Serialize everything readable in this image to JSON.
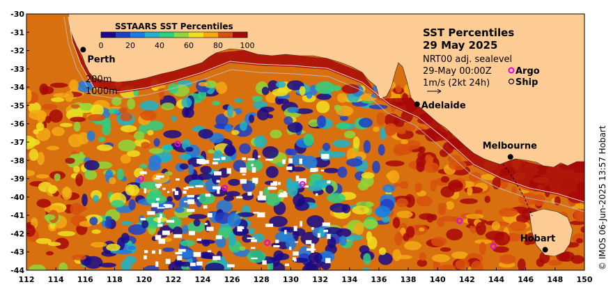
{
  "map": {
    "title_line1": "SST Percentiles",
    "title_line2": "29 May 2025",
    "product": "NRT00 adj. sealevel",
    "time": "29-May 00:00Z",
    "argo_label": "Argo",
    "ship_label": "Ship",
    "velocity_scale": "1m/s (2kt 24h)",
    "contour_200": "200m",
    "contour_1000": "1000m",
    "credit": "© IMOS 06-Jun-2025 13:57 Hobart",
    "colorbar": {
      "title": "SSTAARS SST Percentiles",
      "ticks": [
        "0",
        "20",
        "40",
        "60",
        "80",
        "100"
      ],
      "colors": [
        "#1a0a8a",
        "#1d3ec8",
        "#1e7ae0",
        "#1fb3c9",
        "#2fcf82",
        "#8fd63a",
        "#f0e020",
        "#f5a814",
        "#d8500e",
        "#a80808"
      ]
    },
    "lon_ticks": [
      "112",
      "114",
      "116",
      "118",
      "120",
      "122",
      "124",
      "126",
      "128",
      "130",
      "132",
      "134",
      "136",
      "138",
      "140",
      "142",
      "144",
      "146",
      "148",
      "150"
    ],
    "lat_ticks": [
      "-30",
      "-31",
      "-32",
      "-33",
      "-34",
      "-35",
      "-36",
      "-37",
      "-38",
      "-39",
      "-40",
      "-41",
      "-42",
      "-43",
      "-44"
    ],
    "cities": [
      {
        "name": "Perth",
        "lon": 115.86,
        "lat": -31.95
      },
      {
        "name": "Adelaide",
        "lon": 138.6,
        "lat": -34.93
      },
      {
        "name": "Melbourne",
        "lon": 144.96,
        "lat": -37.81
      },
      {
        "name": "Hobart",
        "lon": 147.33,
        "lat": -42.88
      }
    ],
    "argo_floats": [
      {
        "lon": 122.3,
        "lat": -37.1
      },
      {
        "lon": 119.8,
        "lat": -39.0
      },
      {
        "lon": 125.5,
        "lat": -39.5
      },
      {
        "lon": 130.8,
        "lat": -39.3
      },
      {
        "lon": 128.4,
        "lat": -42.5
      },
      {
        "lon": 141.5,
        "lat": -41.3
      },
      {
        "lon": 143.8,
        "lat": -42.7
      }
    ],
    "land_color": "#fdcb94"
  }
}
